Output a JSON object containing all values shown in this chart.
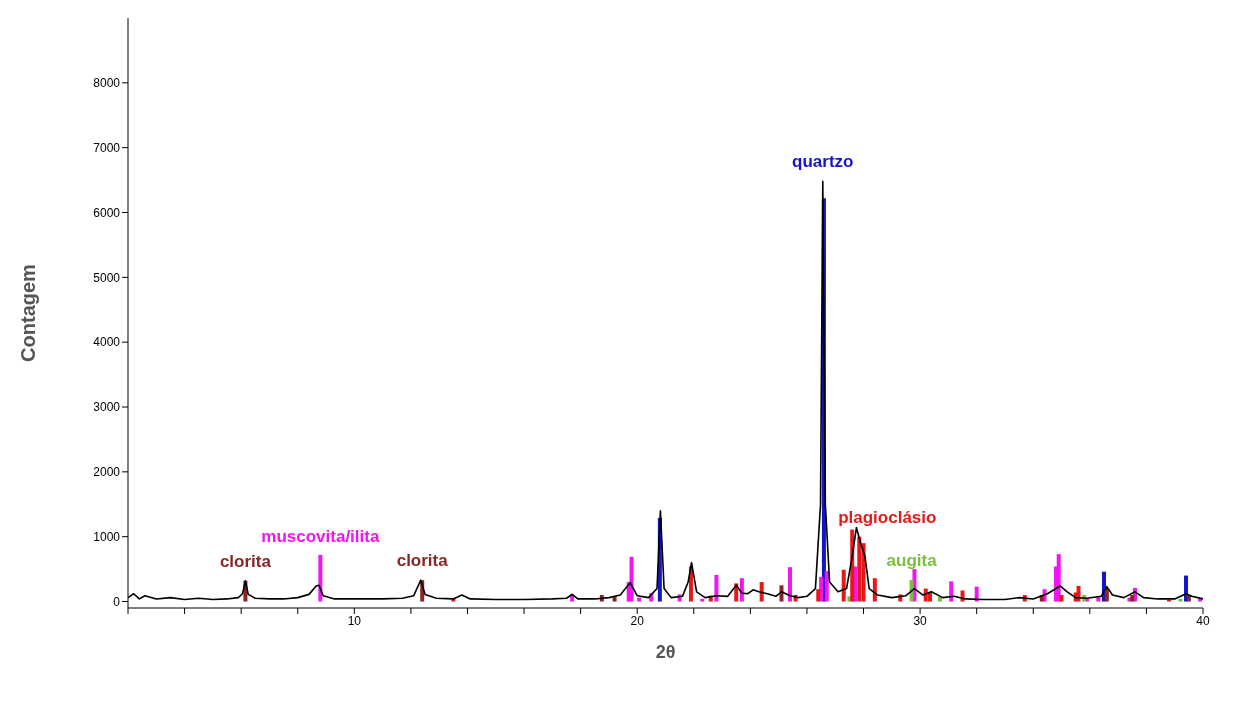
{
  "chart_data": {
    "type": "line",
    "xlabel": "2θ",
    "ylabel": "Contagem",
    "xlim": [
      2,
      40
    ],
    "xticks": [
      {
        "value": 2,
        "label": null
      },
      {
        "value": 4,
        "label": null
      },
      {
        "value": 6,
        "label": null
      },
      {
        "value": 8,
        "label": null
      },
      10,
      {
        "value": 12,
        "label": null
      },
      {
        "value": 14,
        "label": null
      },
      {
        "value": 16,
        "label": null
      },
      {
        "value": 18,
        "label": null
      },
      20,
      {
        "value": 22,
        "label": null
      },
      {
        "value": 24,
        "label": null
      },
      {
        "value": 26,
        "label": null
      },
      {
        "value": 28,
        "label": null
      },
      30,
      {
        "value": 32,
        "label": null
      },
      {
        "value": 34,
        "label": null
      },
      {
        "value": 36,
        "label": null
      },
      {
        "value": 38,
        "label": null
      },
      40
    ],
    "ylim": [
      -100,
      9000
    ],
    "yticks": [
      0,
      1000,
      2000,
      3000,
      4000,
      5000,
      6000,
      7000,
      8000
    ],
    "grid": false,
    "legend": false,
    "marker": "none",
    "line_style": "solid",
    "series": [
      {
        "color": "#000000",
        "x": [
          2.0,
          2.2,
          2.4,
          2.6,
          3.0,
          3.5,
          4.0,
          4.5,
          5.0,
          5.5,
          5.9,
          6.05,
          6.15,
          6.25,
          6.5,
          7.0,
          7.5,
          8.0,
          8.4,
          8.65,
          8.75,
          8.9,
          9.3,
          10,
          11,
          11.7,
          12.1,
          12.35,
          12.5,
          12.9,
          13.5,
          13.8,
          14.1,
          15,
          16,
          17,
          17.5,
          17.7,
          17.9,
          18.5,
          19.0,
          19.4,
          19.75,
          20.0,
          20.4,
          20.7,
          20.82,
          20.95,
          21.2,
          21.6,
          21.8,
          21.92,
          22.1,
          22.4,
          22.8,
          23.2,
          23.5,
          23.7,
          23.9,
          24.1,
          24.3,
          24.6,
          24.9,
          25.1,
          25.4,
          25.7,
          26.0,
          26.3,
          26.48,
          26.56,
          26.65,
          26.8,
          27.1,
          27.4,
          27.6,
          27.75,
          27.9,
          28.05,
          28.2,
          28.5,
          29.0,
          29.5,
          29.8,
          30.1,
          30.4,
          30.8,
          31.2,
          31.6,
          32.2,
          33,
          33.5,
          34,
          34.5,
          34.95,
          35.2,
          35.5,
          35.9,
          36.4,
          36.6,
          36.8,
          37.2,
          37.6,
          37.9,
          38.4,
          39,
          39.4,
          39.6,
          40
        ],
        "values": [
          60,
          120,
          40,
          90,
          40,
          60,
          30,
          50,
          30,
          40,
          60,
          120,
          320,
          110,
          50,
          40,
          40,
          60,
          110,
          240,
          250,
          90,
          40,
          40,
          40,
          50,
          90,
          330,
          110,
          50,
          40,
          100,
          40,
          30,
          30,
          40,
          50,
          110,
          40,
          40,
          60,
          100,
          290,
          90,
          60,
          200,
          1400,
          200,
          60,
          80,
          300,
          600,
          150,
          60,
          90,
          80,
          250,
          130,
          120,
          180,
          150,
          120,
          80,
          150,
          90,
          60,
          80,
          200,
          1500,
          6480,
          1500,
          300,
          150,
          200,
          700,
          1140,
          900,
          700,
          200,
          100,
          60,
          90,
          200,
          100,
          150,
          60,
          80,
          40,
          30,
          30,
          60,
          40,
          120,
          240,
          150,
          60,
          50,
          80,
          230,
          100,
          60,
          150,
          60,
          40,
          40,
          120,
          80,
          40
        ]
      },
      {
        "type": "bar",
        "color": "#1515c8",
        "x": [
          20.8,
          26.6,
          36.5,
          39.4
        ],
        "values": [
          1290,
          6220,
          460,
          400
        ]
      },
      {
        "type": "bar",
        "color": "#f016f0",
        "x": [
          8.8,
          17.7,
          19.7,
          19.8,
          20.07,
          20.5,
          21.5,
          22.3,
          22.8,
          23.7,
          25.4,
          26.5,
          26.7,
          27.7,
          29.8,
          31.1,
          32.0,
          34.4,
          34.8,
          34.9,
          35.9,
          36.3,
          37.4,
          37.6,
          39.9
        ],
        "values": [
          720,
          110,
          300,
          690,
          60,
          130,
          110,
          40,
          410,
          360,
          530,
          380,
          470,
          540,
          500,
          310,
          230,
          190,
          540,
          730,
          40,
          80,
          60,
          210,
          60
        ]
      },
      {
        "type": "bar",
        "color": "#8b2525",
        "x": [
          6.15,
          12.4,
          18.75,
          19.2,
          25.1,
          34.3,
          36.6,
          37.5,
          39.5
        ],
        "values": [
          320,
          330,
          100,
          80,
          250,
          100,
          200,
          100,
          100
        ]
      },
      {
        "type": "bar",
        "color": "#7bbf3c",
        "x": [
          27.5,
          29.7,
          30.7,
          35.8,
          39.2
        ],
        "values": [
          80,
          330,
          70,
          100,
          40
        ]
      },
      {
        "type": "bar",
        "color": "#e81818",
        "x": [
          13.5,
          21.9,
          22.6,
          23.5,
          24.4,
          25.6,
          26.4,
          27.3,
          27.6,
          27.85,
          28.0,
          28.4,
          29.3,
          30.2,
          30.35,
          31.5,
          33.7,
          35.0,
          35.5,
          35.6,
          38.8
        ],
        "values": [
          40,
          540,
          90,
          280,
          300,
          100,
          190,
          490,
          1110,
          1000,
          900,
          360,
          110,
          200,
          150,
          170,
          100,
          100,
          140,
          240,
          30
        ]
      }
    ],
    "annotations": [
      {
        "text": "clorita",
        "x": 6.15,
        "y": 320
      },
      {
        "text": "muscovita/ilita",
        "x": 8.8,
        "y": 700
      },
      {
        "text": "clorita",
        "x": 12.4,
        "y": 330
      },
      {
        "text": "quartzo",
        "x": 26.56,
        "y": 6480
      },
      {
        "text": "plagioclásio",
        "x": 27.85,
        "y": 1000
      },
      {
        "text": "augita",
        "x": 29.7,
        "y": 330
      }
    ]
  }
}
